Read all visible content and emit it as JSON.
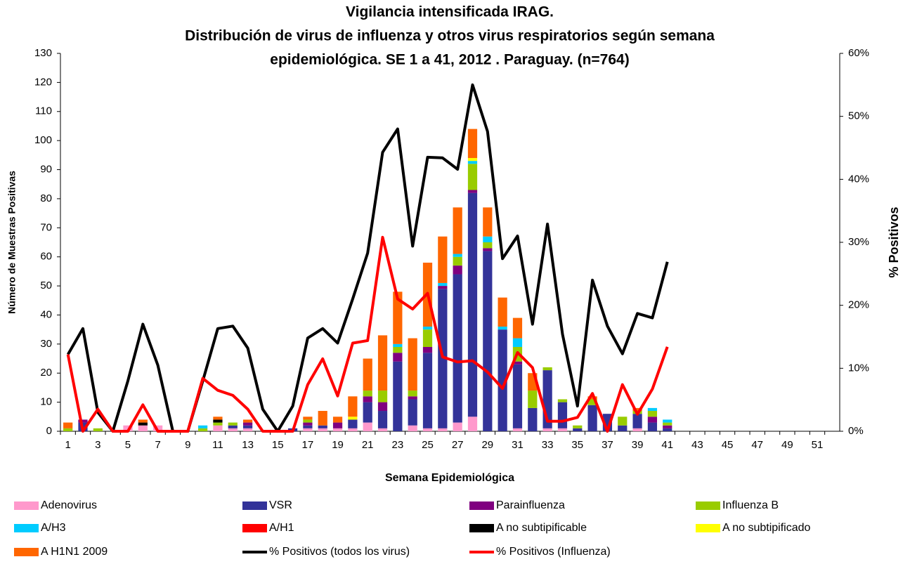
{
  "chart_data": {
    "type": "bar",
    "stacked": true,
    "title": [
      "Vigilancia intensificada IRAG.",
      "Distribución de virus de influenza y otros virus respiratorios según semana",
      "epidemiológica. SE 1 a 41, 2012 . Paraguay. (n=764)"
    ],
    "xlabel": "Semana Epidemiológica",
    "ylabel": "Número de Muestras Positivas",
    "y2label": "% Positivos",
    "categories": [
      "1",
      null,
      "3",
      null,
      "5",
      null,
      "7",
      null,
      "9",
      null,
      "11",
      null,
      "13",
      null,
      "15",
      null,
      "17",
      null,
      "19",
      null,
      "21",
      null,
      "23",
      null,
      "25",
      null,
      "27",
      null,
      "29",
      null,
      "31",
      null,
      "33",
      null,
      "35",
      null,
      "37",
      null,
      "39",
      null,
      "41",
      null,
      "43",
      null,
      "45",
      null,
      "47",
      null,
      "49",
      null,
      "51",
      null
    ],
    "ylim": [
      0,
      130
    ],
    "yticks": [
      0,
      10,
      20,
      30,
      40,
      50,
      60,
      70,
      80,
      90,
      100,
      110,
      120,
      130
    ],
    "y2lim": [
      0,
      60
    ],
    "y2ticks": [
      {
        "value": 0,
        "label": "0%"
      },
      {
        "value": 10,
        "label": "10%"
      },
      {
        "value": 20,
        "label": "20%"
      },
      {
        "value": 30,
        "label": "30%"
      },
      {
        "value": 40,
        "label": "40%"
      },
      {
        "value": 50,
        "label": "50%"
      },
      {
        "value": 60,
        "label": "60%"
      }
    ],
    "grid": false,
    "series": [
      {
        "name": "Adenovirus",
        "color": "#ff99cc",
        "values": [
          0,
          0,
          0,
          0,
          2,
          2,
          2,
          0,
          0,
          0,
          2,
          1,
          1,
          0,
          0,
          0,
          1,
          1,
          1,
          1,
          3,
          1,
          0,
          2,
          1,
          1,
          3,
          5,
          0,
          0,
          1,
          0,
          1,
          1,
          0,
          0,
          0,
          0,
          1,
          0,
          0,
          null,
          null,
          null,
          null,
          null,
          null,
          null,
          null,
          null,
          null,
          null
        ]
      },
      {
        "name": "VSR",
        "color": "#333399",
        "values": [
          0,
          3,
          0,
          0,
          0,
          0,
          0,
          0,
          0,
          0,
          0,
          1,
          1,
          0,
          0,
          1,
          1,
          1,
          0,
          3,
          7,
          6,
          24,
          9,
          26,
          48,
          51,
          77,
          62,
          35,
          22,
          8,
          20,
          9,
          1,
          9,
          6,
          2,
          5,
          3,
          1,
          null,
          null,
          null,
          null,
          null,
          null,
          null,
          null,
          null,
          null,
          null
        ]
      },
      {
        "name": "Parainfluenza",
        "color": "#800080",
        "values": [
          0,
          1,
          0,
          0,
          0,
          0,
          0,
          0,
          0,
          0,
          0,
          0,
          1,
          0,
          0,
          0,
          1,
          0,
          2,
          0,
          2,
          3,
          3,
          1,
          2,
          1,
          3,
          1,
          1,
          0,
          1,
          0,
          0,
          0,
          0,
          0,
          0,
          0,
          0,
          2,
          1,
          null,
          null,
          null,
          null,
          null,
          null,
          null,
          null,
          null,
          null,
          null
        ]
      },
      {
        "name": "Influenza  B",
        "color": "#99cc00",
        "values": [
          1,
          0,
          1,
          0,
          0,
          0,
          0,
          0,
          0,
          1,
          1,
          1,
          0,
          0,
          0,
          0,
          1,
          0,
          0,
          0,
          2,
          4,
          2,
          2,
          6,
          0,
          3,
          9,
          2,
          0,
          5,
          6,
          1,
          1,
          1,
          2,
          0,
          3,
          1,
          2,
          1,
          null,
          null,
          null,
          null,
          null,
          null,
          null,
          null,
          null,
          null,
          null
        ]
      },
      {
        "name": "A/H3",
        "color": "#00ccff",
        "values": [
          0,
          0,
          0,
          0,
          0,
          0,
          0,
          0,
          0,
          1,
          0,
          0,
          0,
          0,
          0,
          0,
          0,
          0,
          0,
          0,
          0,
          0,
          1,
          0,
          1,
          1,
          1,
          1,
          2,
          1,
          3,
          0,
          0,
          0,
          0,
          0,
          0,
          0,
          0,
          1,
          1,
          null,
          null,
          null,
          null,
          null,
          null,
          null,
          null,
          null,
          null,
          null
        ]
      },
      {
        "name": "A/H1",
        "color": "#ff0000",
        "values": [
          0,
          0,
          0,
          0,
          0,
          0,
          0,
          0,
          0,
          0,
          0,
          0,
          0,
          0,
          0,
          0,
          0,
          0,
          0,
          0,
          0,
          0,
          0,
          0,
          0,
          0,
          0,
          0,
          0,
          0,
          0,
          0,
          0,
          0,
          0,
          0,
          0,
          0,
          0,
          0,
          0,
          null,
          null,
          null,
          null,
          null,
          null,
          null,
          null,
          null,
          null,
          null
        ]
      },
      {
        "name": "A no subtipificable",
        "color": "#000000",
        "values": [
          0,
          0,
          0,
          0,
          0,
          1,
          0,
          0,
          0,
          0,
          1,
          0,
          0,
          0,
          0,
          0,
          0,
          0,
          0,
          0,
          0,
          0,
          0,
          0,
          0,
          0,
          0,
          0,
          0,
          0,
          0,
          0,
          0,
          0,
          0,
          0,
          0,
          0,
          0,
          0,
          0,
          null,
          null,
          null,
          null,
          null,
          null,
          null,
          null,
          null,
          null,
          null
        ]
      },
      {
        "name": "A no subtipificado",
        "color": "#ffff00",
        "values": [
          0,
          0,
          0,
          0,
          0,
          0,
          0,
          0,
          0,
          0,
          0,
          0,
          0,
          0,
          0,
          0,
          0,
          0,
          0,
          1,
          0,
          0,
          0,
          0,
          0,
          0,
          0,
          1,
          0,
          0,
          0,
          0,
          0,
          0,
          0,
          0,
          0,
          0,
          0,
          0,
          0,
          null,
          null,
          null,
          null,
          null,
          null,
          null,
          null,
          null,
          null,
          null
        ]
      },
      {
        "name": "A H1N1 2009",
        "color": "#ff6600",
        "values": [
          2,
          0,
          0,
          0,
          0,
          1,
          0,
          0,
          0,
          0,
          1,
          0,
          1,
          0,
          0,
          0,
          1,
          5,
          2,
          7,
          11,
          19,
          18,
          18,
          22,
          16,
          16,
          10,
          10,
          10,
          7,
          6,
          0,
          0,
          0,
          1,
          0,
          0,
          1,
          0,
          0,
          null,
          null,
          null,
          null,
          null,
          null,
          null,
          null,
          null,
          null,
          null
        ]
      },
      {
        "name": "% Positivos (todos los virus)",
        "color": "#000000",
        "type": "line",
        "axis": "y2",
        "values": [
          12.2,
          16.3,
          3,
          0,
          8,
          17,
          10.5,
          0,
          0,
          8,
          16.3,
          16.7,
          13.2,
          3.5,
          0,
          4,
          14.8,
          16.3,
          14,
          21,
          28.3,
          44.3,
          48,
          29.4,
          43.5,
          43.4,
          41.6,
          55,
          47.6,
          27.4,
          31,
          17,
          32.9,
          15.4,
          4,
          24,
          16.7,
          12.3,
          18.7,
          18,
          26.9,
          null,
          null,
          null,
          null,
          null,
          null,
          null,
          null,
          null,
          null,
          null
        ]
      },
      {
        "name": "% Positivos (Influenza)",
        "color": "#ff0000",
        "type": "line",
        "axis": "y2",
        "values": [
          12.2,
          0,
          3.5,
          0,
          0,
          4.2,
          0,
          0,
          0,
          8.4,
          6.5,
          5.7,
          3.5,
          0,
          0,
          0,
          7.4,
          11.5,
          5.6,
          14,
          14.4,
          30.8,
          21,
          19.4,
          21.9,
          11.8,
          11,
          11.2,
          9.4,
          6.8,
          12.5,
          10.1,
          1.6,
          1.6,
          2.2,
          6,
          0,
          7.4,
          2.7,
          6.7,
          13.4,
          null,
          null,
          null,
          null,
          null,
          null,
          null,
          null,
          null,
          null,
          null
        ]
      }
    ]
  }
}
